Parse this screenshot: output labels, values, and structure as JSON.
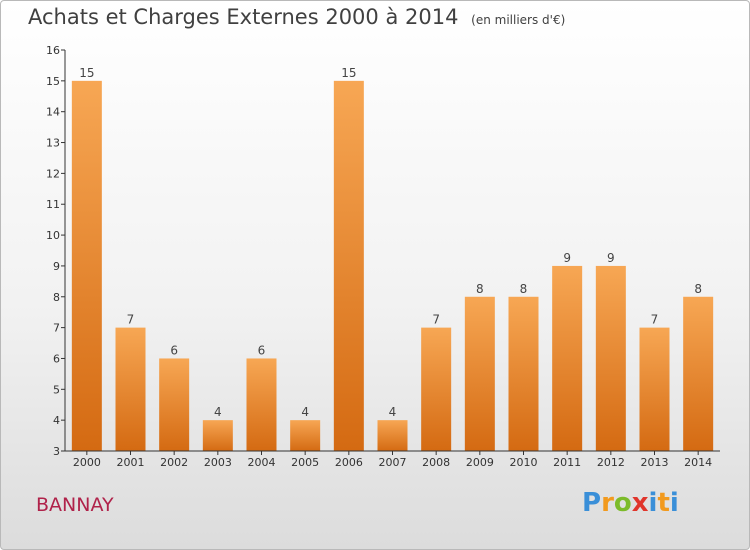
{
  "header": {
    "title": "Achats et Charges Externes 2000 à 2014",
    "subtitle": "(en milliers d'€)"
  },
  "footer": {
    "location": "BANNAY",
    "logo_text": "Proxiti"
  },
  "colors": {
    "bar_light": "#f7a754",
    "bar_dark": "#d46a12",
    "axis": "#333333"
  },
  "chart_data": {
    "type": "bar",
    "title": "Achats et Charges Externes 2000 à 2014",
    "subtitle": "(en milliers d'€)",
    "xlabel": "",
    "ylabel": "",
    "ylim": [
      3,
      16
    ],
    "yticks": [
      3,
      4,
      5,
      6,
      7,
      8,
      9,
      10,
      11,
      12,
      13,
      14,
      15,
      16
    ],
    "grid": false,
    "categories": [
      "2000",
      "2001",
      "2002",
      "2003",
      "2004",
      "2005",
      "2006",
      "2007",
      "2008",
      "2009",
      "2010",
      "2011",
      "2012",
      "2013",
      "2014"
    ],
    "values": [
      15,
      7,
      6,
      4,
      6,
      4,
      15,
      4,
      7,
      8,
      8,
      9,
      9,
      7,
      8
    ]
  }
}
